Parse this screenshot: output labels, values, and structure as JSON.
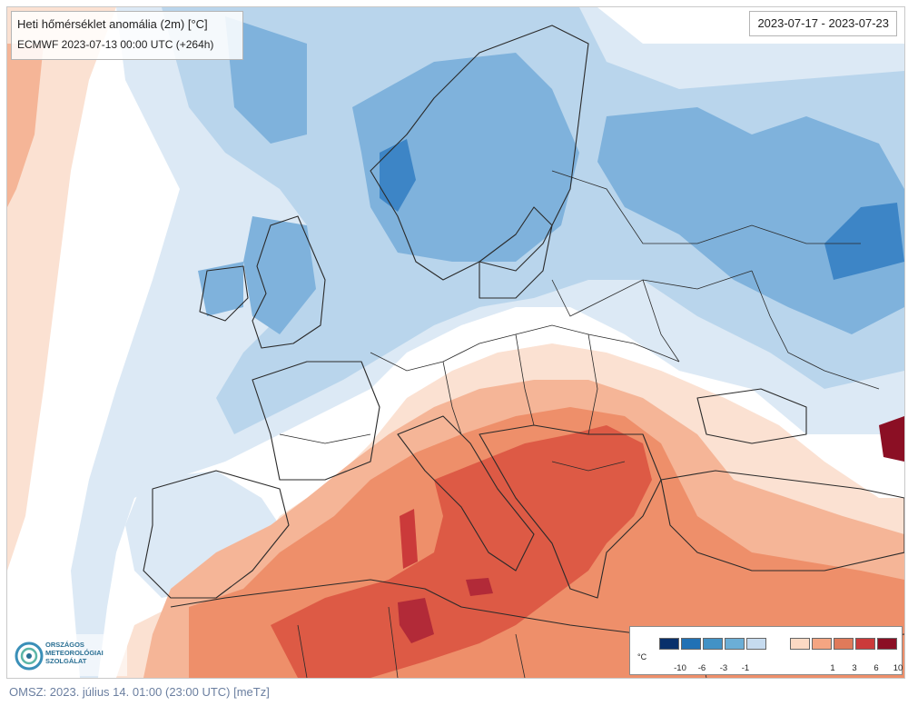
{
  "map": {
    "title": "Heti hőmérséklet anomália (2m) [°C]",
    "model_run": "ECMWF 2023-07-13 00:00 UTC (+264h)",
    "date_range": "2023-07-17 - 2023-07-23"
  },
  "legend": {
    "unit": "°C",
    "swatches": [
      {
        "color": "#08306b",
        "label": "-10"
      },
      {
        "color": "#2171b5",
        "label": "-6"
      },
      {
        "color": "#4292c6",
        "label": "-3"
      },
      {
        "color": "#6baed6",
        "label": "-1"
      },
      {
        "color": "#c6dbef",
        "label": ""
      },
      {
        "color": "#fcd9c4",
        "label": ""
      },
      {
        "color": "#f4a582",
        "label": "1"
      },
      {
        "color": "#e07a5a",
        "label": "3"
      },
      {
        "color": "#cb3a3a",
        "label": "6"
      },
      {
        "color": "#8b0f24",
        "label": "10"
      },
      {
        "color": "#5c0618",
        "label": ""
      }
    ]
  },
  "logo": {
    "line1": "ORSZÁGOS",
    "line2": "METEOROLÓGIAI",
    "line3": "SZOLGÁLAT"
  },
  "footer": {
    "text": "OMSZ: 2023. július 14. 01:00 (23:00  UTC)  [meTz]"
  },
  "colors": {
    "cold_pale": "#dce9f5",
    "cold_light": "#b9d5ec",
    "cold_mid": "#7fb2dc",
    "cold_strong": "#3d85c6",
    "neutral": "#ffffff",
    "warm_pale": "#fbe1d2",
    "warm_light": "#f5b597",
    "warm_mid": "#ee8f6a",
    "warm_strong": "#dd5a45",
    "warm_deep": "#b22a38",
    "border": "#2a2a2a"
  }
}
